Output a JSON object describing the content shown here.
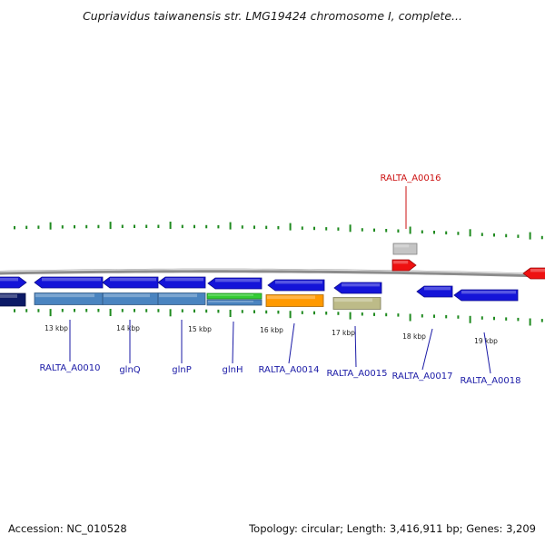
{
  "header": {
    "title": "Cupriavidus taiwanensis str. LMG19424 chromosome I, complete..."
  },
  "footer": {
    "accession": "Accession: NC_010528",
    "summary": "Topology: circular; Length: 3,416,911 bp; Genes: 3,209"
  },
  "colors": {
    "backbone": "#8c8c8c",
    "tick": "#1f8a1f",
    "label_default": "#1a1aa6",
    "label_highlight": "#cc1111",
    "gene_blue": "#1414d8",
    "gene_navy": "#0c1a66",
    "gene_steel": "#4a84c0",
    "gene_green": "#33cc33",
    "gene_orange": "#ff9900",
    "gene_khaki": "#bdbb88",
    "gene_red": "#ee1111",
    "gene_gray": "#c4c4c4"
  },
  "scale_labels": [
    "13 kbp",
    "14 kbp",
    "15 kbp",
    "16 kbp",
    "17 kbp",
    "18 kbp",
    "19 kbp"
  ],
  "gene_labels": [
    {
      "id": "RALTA_A0010",
      "text": "RALTA_A0010"
    },
    {
      "id": "glnQ",
      "text": "glnQ"
    },
    {
      "id": "glnP",
      "text": "glnP"
    },
    {
      "id": "glnH",
      "text": "glnH"
    },
    {
      "id": "RALTA_A0014",
      "text": "RALTA_A0014"
    },
    {
      "id": "RALTA_A0015",
      "text": "RALTA_A0015"
    },
    {
      "id": "RALTA_A0016",
      "text": "RALTA_A0016"
    },
    {
      "id": "RALTA_A0017",
      "text": "RALTA_A0017"
    },
    {
      "id": "RALTA_A0018",
      "text": "RALTA_A0018"
    }
  ]
}
